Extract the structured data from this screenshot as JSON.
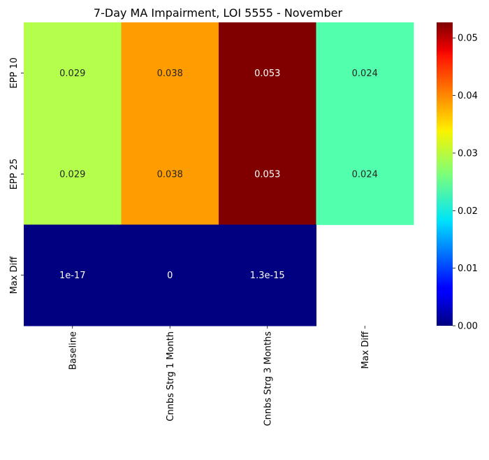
{
  "chart_data": {
    "type": "heatmap",
    "title": "7-Day MA Impairment, LOI 5555 - November",
    "xlabel": "",
    "ylabel": "",
    "x_categories": [
      "Baseline",
      "Cnnbs Strg 1 Month",
      "Cnnbs Strg 3 Months",
      "Max Diff"
    ],
    "y_categories": [
      "EPP 10",
      "EPP 25",
      "Max Diff"
    ],
    "values": [
      [
        0.029,
        0.038,
        0.053,
        0.024
      ],
      [
        0.029,
        0.038,
        0.053,
        0.024
      ],
      [
        1e-17,
        0,
        1.3e-15,
        null
      ]
    ],
    "annotations": [
      [
        "0.029",
        "0.038",
        "0.053",
        "0.024"
      ],
      [
        "0.029",
        "0.038",
        "0.053",
        "0.024"
      ],
      [
        "1e-17",
        "0",
        "1.3e-15",
        ""
      ]
    ],
    "colormap": "jet",
    "vmin": 0,
    "vmax": 0.0527,
    "colorbar_ticks": [
      "0.00",
      "0.01",
      "0.02",
      "0.03",
      "0.04",
      "0.05"
    ],
    "colorbar_tick_values": [
      0,
      0.01,
      0.02,
      0.03,
      0.04,
      0.05
    ],
    "colors": {
      "annotation_dark_text": "#262626",
      "annotation_light_text": "#ffffff",
      "axis_text": "#000000"
    }
  }
}
